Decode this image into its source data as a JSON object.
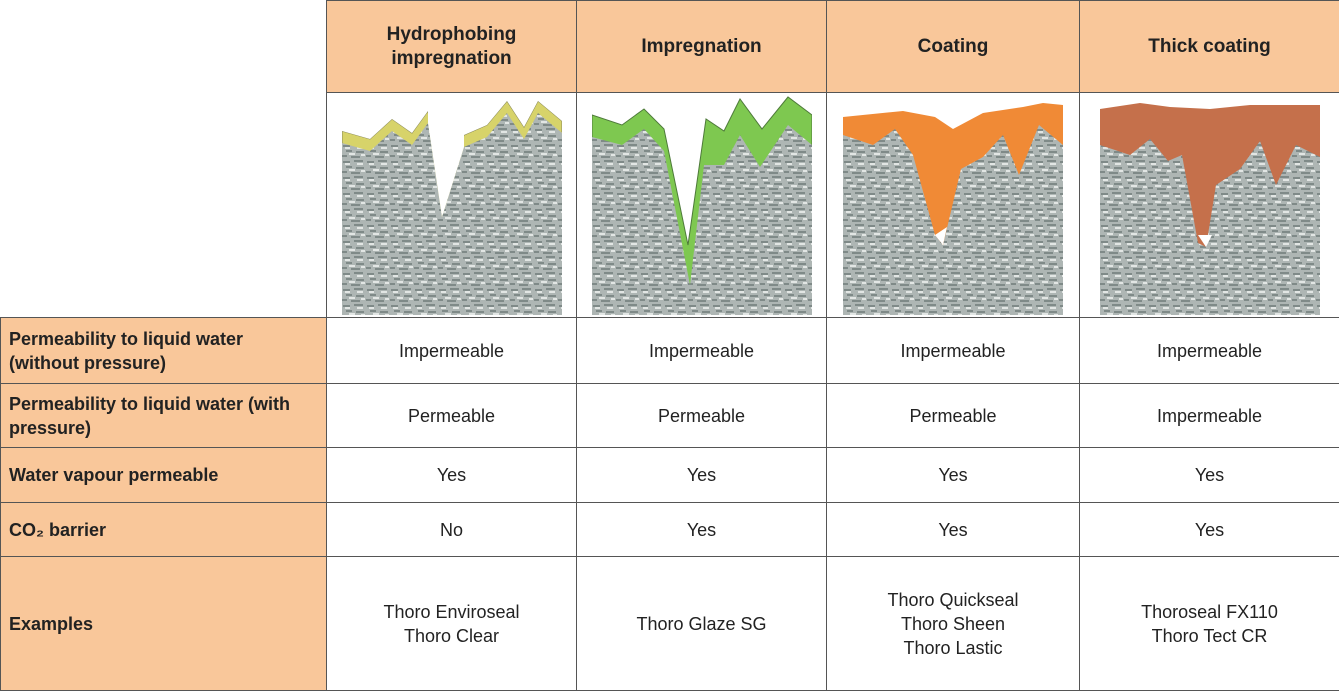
{
  "table": {
    "headers": [
      "Hydrophobing impregnation",
      "Impregnation",
      "Coating",
      "Thick coating"
    ],
    "rows": [
      {
        "label": "Permeability to liquid water (without pressure)",
        "cells": [
          [
            "Impermeable"
          ],
          [
            "Impermeable"
          ],
          [
            "Impermeable"
          ],
          [
            "Impermeable"
          ]
        ]
      },
      {
        "label": "Permeability to liquid water (with pressure)",
        "cells": [
          [
            "Permeable"
          ],
          [
            "Permeable"
          ],
          [
            "Permeable"
          ],
          [
            "Impermeable"
          ]
        ]
      },
      {
        "label": "Water vapour permeable",
        "cells": [
          [
            "Yes"
          ],
          [
            "Yes"
          ],
          [
            "Yes"
          ],
          [
            "Yes"
          ]
        ]
      },
      {
        "label": "CO₂ barrier",
        "cells": [
          [
            "No"
          ],
          [
            "Yes"
          ],
          [
            "Yes"
          ],
          [
            "Yes"
          ]
        ]
      },
      {
        "label": "Examples",
        "cells": [
          [
            "Thoro Enviroseal",
            "Thoro Clear"
          ],
          [
            "Thoro Glaze SG"
          ],
          [
            "Thoro Quickseal",
            "Thoro Sheen",
            "Thoro Lastic"
          ],
          [
            "Thoroseal FX110",
            "Thoro Tect CR"
          ]
        ]
      }
    ]
  }
}
